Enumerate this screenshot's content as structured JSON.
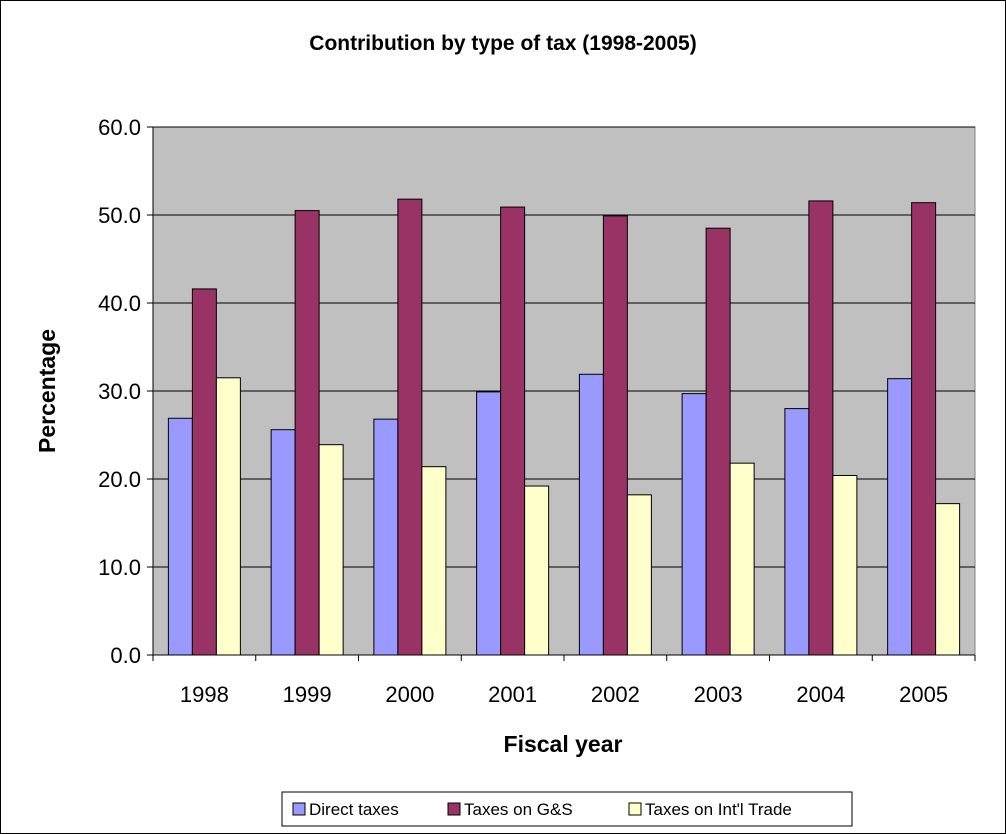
{
  "chart_data": {
    "type": "bar",
    "title": "Contribution by type of tax (1998-2005)",
    "xlabel": "Fiscal year",
    "ylabel": "Percentage",
    "categories": [
      "1998",
      "1999",
      "2000",
      "2001",
      "2002",
      "2003",
      "2004",
      "2005"
    ],
    "series": [
      {
        "name": "Direct taxes",
        "color": "#9999FF",
        "values": [
          26.9,
          25.6,
          26.8,
          29.9,
          31.9,
          29.7,
          28.0,
          31.4
        ]
      },
      {
        "name": "Taxes on G&S",
        "color": "#993366",
        "values": [
          41.6,
          50.5,
          51.8,
          50.9,
          49.9,
          48.5,
          51.6,
          51.4
        ]
      },
      {
        "name": "Taxes on Int'l Trade",
        "color": "#FFFFCC",
        "values": [
          31.5,
          23.9,
          21.4,
          19.2,
          18.2,
          21.8,
          20.4,
          17.2
        ]
      }
    ],
    "ylim": [
      0,
      60
    ],
    "yticks": [
      "0.0",
      "10.0",
      "20.0",
      "30.0",
      "40.0",
      "50.0",
      "60.0"
    ],
    "grid": true,
    "plot_background": "#C0C0C0",
    "legend_position": "bottom"
  }
}
